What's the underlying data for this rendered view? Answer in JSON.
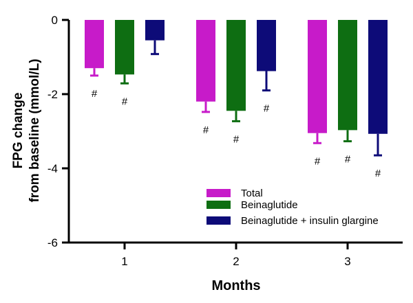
{
  "chart_data": {
    "type": "bar",
    "xlabel": "Months",
    "ylabel_lines": [
      "FPG change",
      "from baseline (mmol/L)"
    ],
    "categories": [
      "1",
      "2",
      "3"
    ],
    "ylim": [
      -6,
      0
    ],
    "yticks": [
      0,
      -2,
      -4,
      -6
    ],
    "legend_position": "bottom-right",
    "series": [
      {
        "name": "Total",
        "color": "#C71BC9",
        "values": [
          -1.3,
          -2.2,
          -3.05
        ],
        "err": [
          0.2,
          0.28,
          0.27
        ],
        "annotations": [
          "#",
          "#",
          "#"
        ]
      },
      {
        "name": "Beinaglutide",
        "color": "#0E6E12",
        "values": [
          -1.47,
          -2.45,
          -2.97
        ],
        "err": [
          0.24,
          0.28,
          0.3
        ],
        "annotations": [
          "#",
          "#",
          "#"
        ]
      },
      {
        "name": "Beinaglutide + insulin glargine",
        "color": "#0D0B78",
        "values": [
          -0.55,
          -1.38,
          -3.07
        ],
        "err": [
          0.37,
          0.52,
          0.58
        ],
        "annotations": [
          "",
          "#",
          "#"
        ]
      }
    ]
  }
}
